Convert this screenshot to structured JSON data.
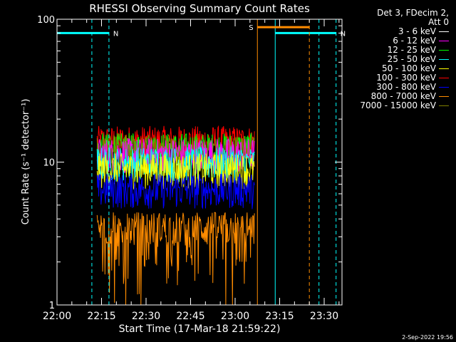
{
  "chart_data": {
    "type": "line",
    "title": "RHESSI Observing Summary Count Rates",
    "xlabel": "Start Time (17-Mar-18 21:59:22)",
    "ylabel": "Count Rate (s⁻¹ detector⁻¹)",
    "yscale": "log",
    "ylim": [
      1,
      100
    ],
    "xlim_minutes": [
      0,
      96
    ],
    "x_ticks": [
      {
        "label": "22:00",
        "t": 0
      },
      {
        "label": "22:15",
        "t": 15
      },
      {
        "label": "22:30",
        "t": 30
      },
      {
        "label": "22:45",
        "t": 45
      },
      {
        "label": "23:00",
        "t": 60
      },
      {
        "label": "23:15",
        "t": 75
      },
      {
        "label": "23:30",
        "t": 90
      }
    ],
    "y_ticks": [
      {
        "label": "1",
        "v": 1
      },
      {
        "label": "10",
        "v": 10
      },
      {
        "label": "100",
        "v": 100
      }
    ],
    "legend_header": [
      "Det 3, FDecim 2,",
      "Att 0"
    ],
    "series": [
      {
        "name": "3 - 6 keV",
        "color": "#ffffff",
        "level": null
      },
      {
        "name": "6 - 12 keV",
        "color": "#ff00ff",
        "level": 11.5
      },
      {
        "name": "12 - 25 keV",
        "color": "#00ff00",
        "level": 12.5
      },
      {
        "name": "25 - 50 keV",
        "color": "#00ffff",
        "level": 10
      },
      {
        "name": "50 - 100 keV",
        "color": "#ffff00",
        "level": 9
      },
      {
        "name": "100 - 300 keV",
        "color": "#ff0000",
        "level": 14
      },
      {
        "name": "300 - 800 keV",
        "color": "#0000ff",
        "level": 6.5
      },
      {
        "name": "800 - 7000 keV",
        "color": "#ff8c00",
        "level": 3.5
      },
      {
        "name": "7000 - 15000 keV",
        "color": "#808000",
        "level": 12
      }
    ],
    "data_interval_minutes": [
      13.5,
      66.5
    ],
    "flags": [
      {
        "label": "N",
        "color": "#00ffff",
        "level": 80,
        "start": 0,
        "end": 17.5,
        "style": "night"
      },
      {
        "label": "N",
        "color": "#00ffff",
        "level": 80,
        "start": 73.5,
        "end": 94,
        "style": "night"
      },
      {
        "label": "S",
        "color": "#ff8c00",
        "level": 88,
        "start": 67.5,
        "end": 85,
        "style": "saa"
      }
    ],
    "timestamp": "2-Sep-2022 19:56"
  }
}
